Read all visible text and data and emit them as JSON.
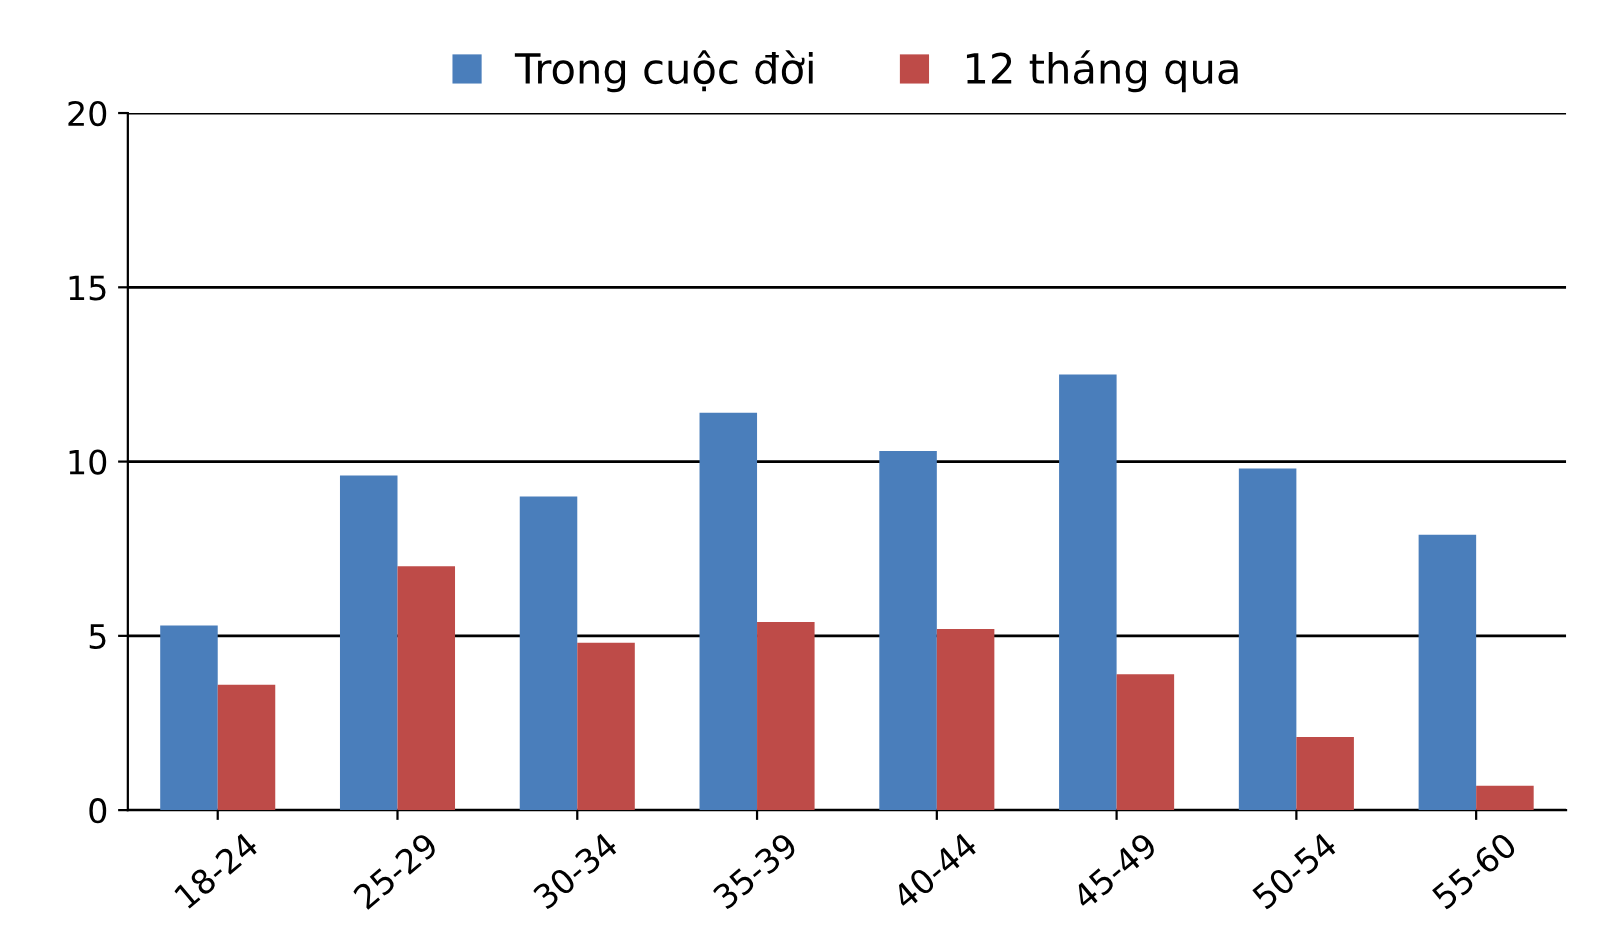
{
  "chart_data": {
    "type": "bar",
    "categories": [
      "18-24",
      "25-29",
      "30-34",
      "35-39",
      "40-44",
      "45-49",
      "50-54",
      "55-60"
    ],
    "series": [
      {
        "name": "Trong cuộc đời",
        "color": "#4a7ebb",
        "values": [
          5.3,
          9.6,
          9.0,
          11.4,
          10.3,
          12.5,
          9.8,
          7.9
        ]
      },
      {
        "name": "12 tháng qua",
        "color": "#be4b48",
        "values": [
          3.6,
          7.0,
          4.8,
          5.4,
          5.2,
          3.9,
          2.1,
          0.7
        ]
      }
    ],
    "ylim": [
      0,
      20
    ],
    "yticks": [
      0,
      5,
      10,
      15,
      20
    ],
    "grid": "y",
    "legend": "top"
  }
}
